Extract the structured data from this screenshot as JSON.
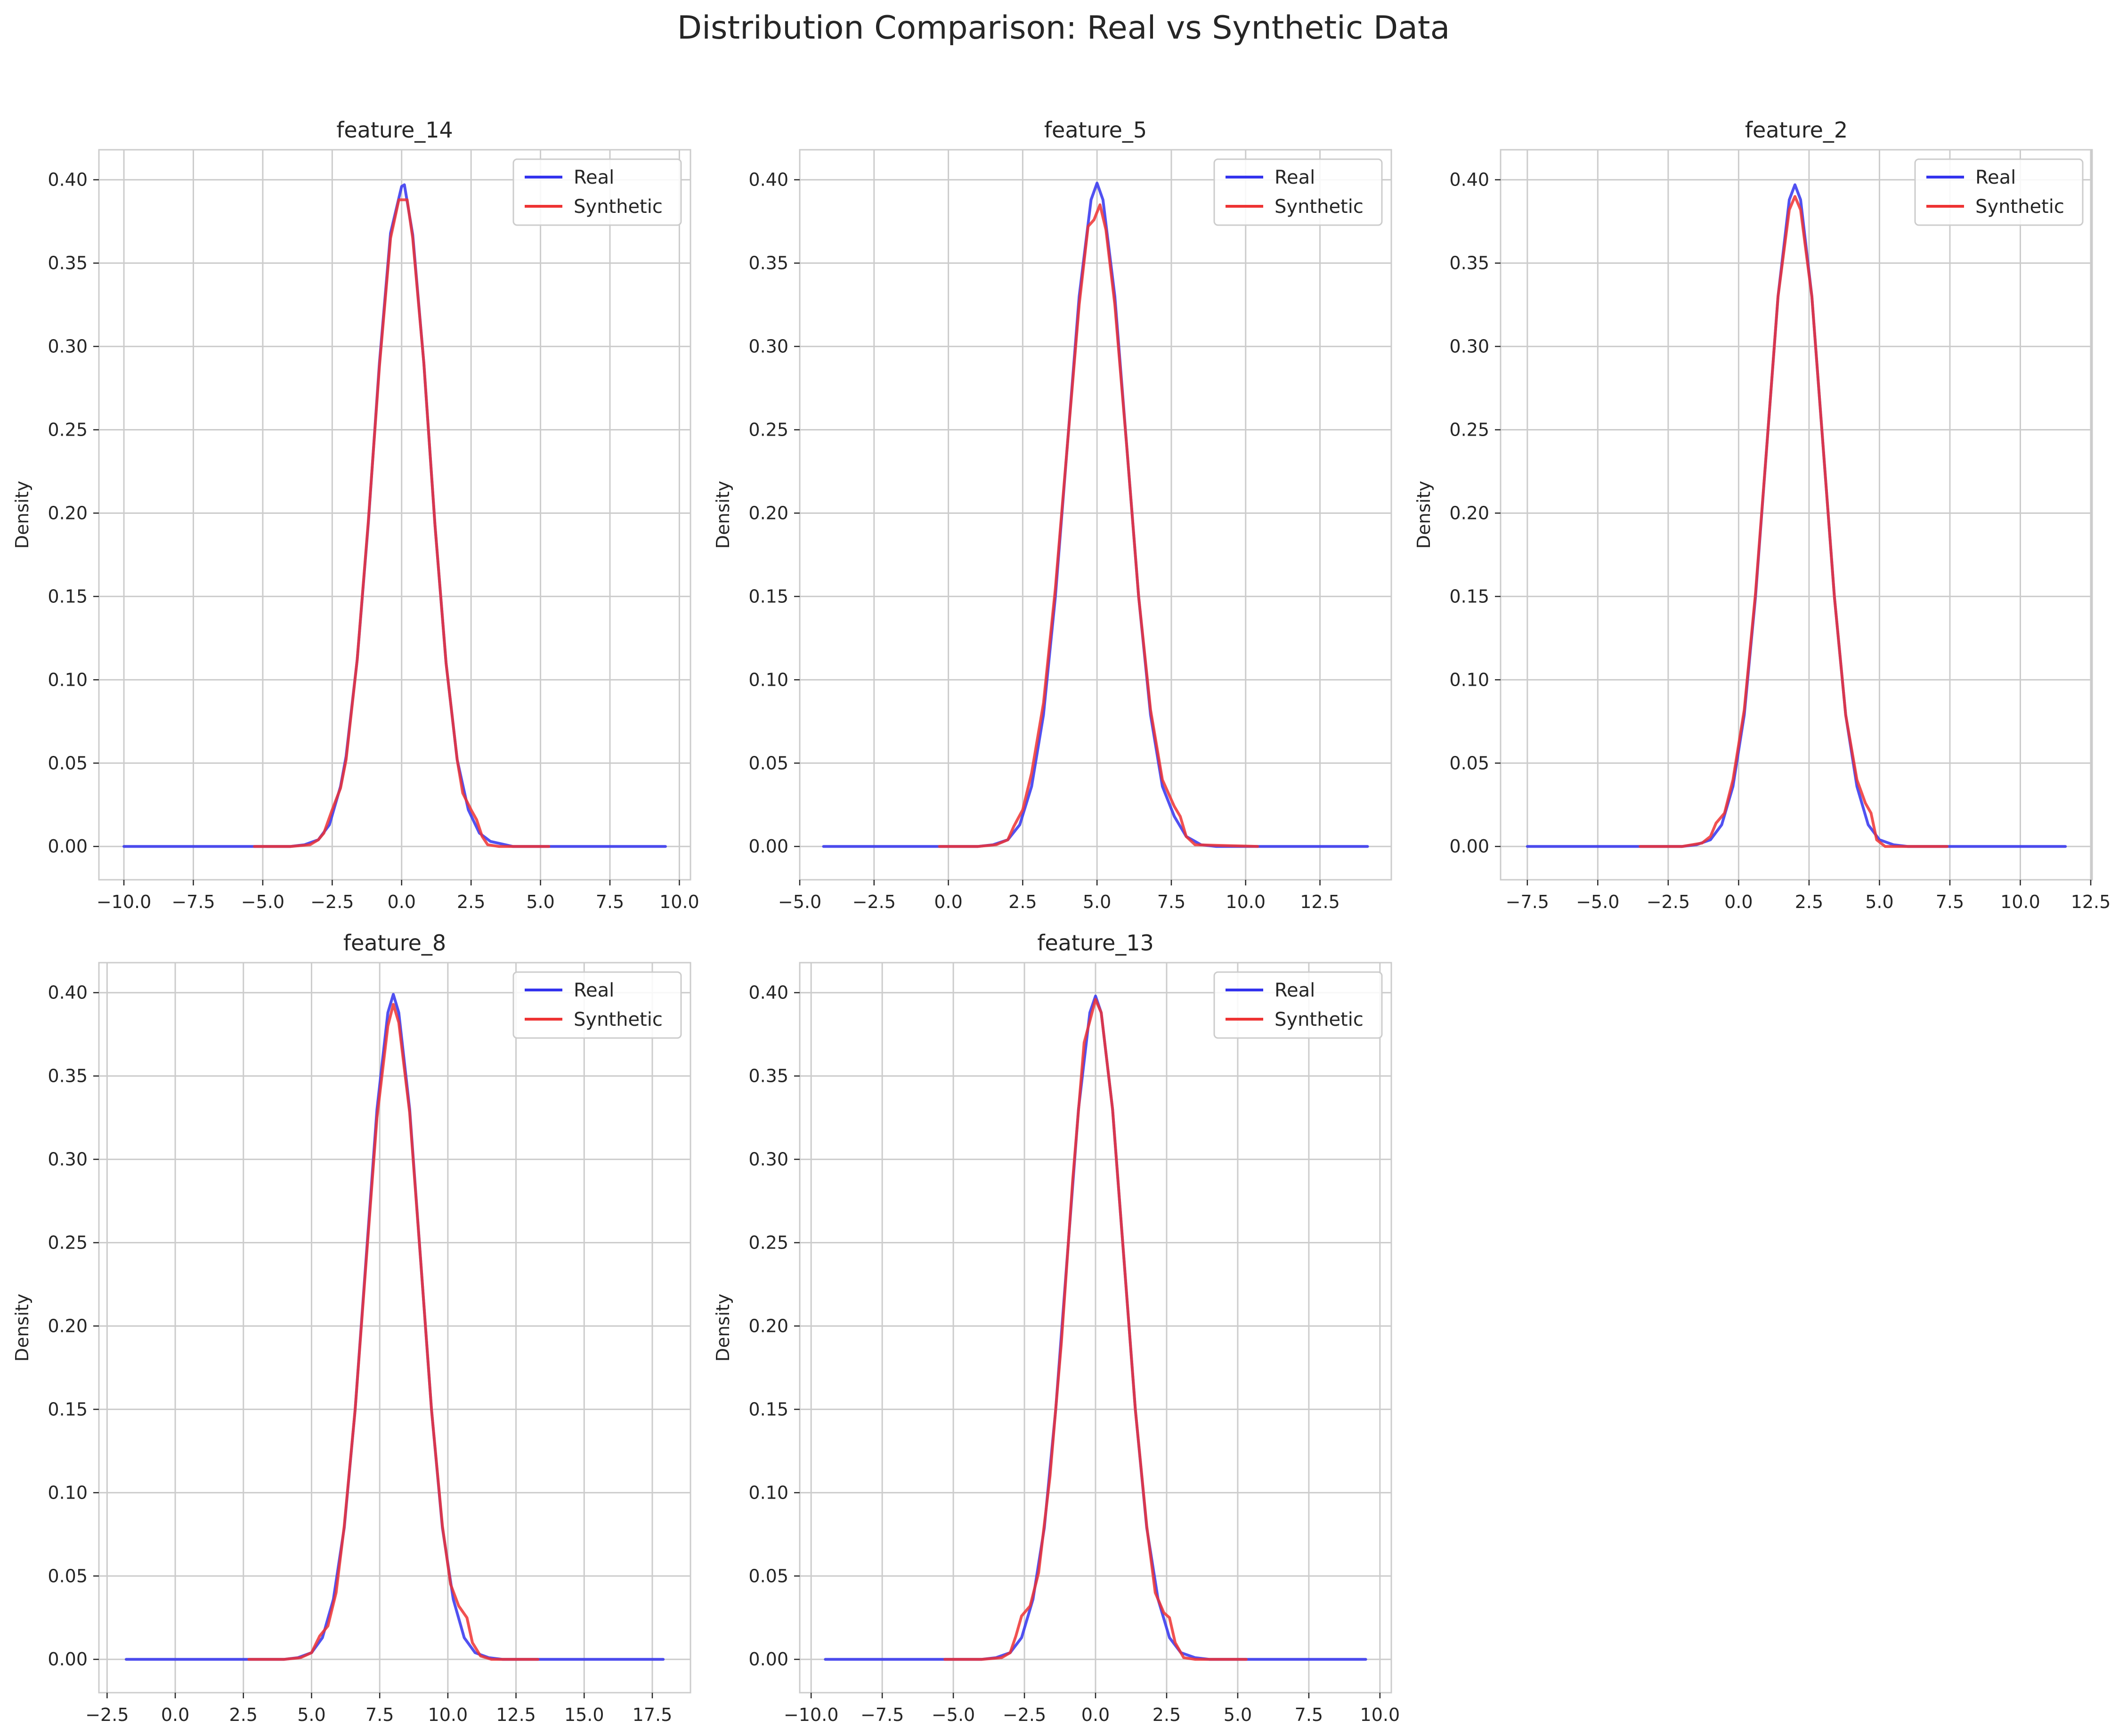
{
  "figure": {
    "title": "Distribution Comparison: Real vs Synthetic Data"
  },
  "colors": {
    "real": "#3333ee",
    "synthetic": "#ee3333",
    "grid": "#cccccc",
    "axes_edge": "#cccccc",
    "text": "#262626"
  },
  "chart_data": [
    {
      "type": "line",
      "title": "feature_14",
      "xlabel": "",
      "ylabel": "Density",
      "xlim": [
        -10.9,
        10.4
      ],
      "ylim": [
        -0.02,
        0.418
      ],
      "xticks": [
        -10.0,
        -7.5,
        -5.0,
        -2.5,
        0.0,
        2.5,
        5.0,
        7.5,
        10.0
      ],
      "xtick_labels": [
        "−10.0",
        "−7.5",
        "−5.0",
        "−2.5",
        "0.0",
        "2.5",
        "5.0",
        "7.5",
        "10.0"
      ],
      "yticks": [
        0.0,
        0.05,
        0.1,
        0.15,
        0.2,
        0.25,
        0.3,
        0.35,
        0.4
      ],
      "ytick_labels": [
        "0.00",
        "0.05",
        "0.10",
        "0.15",
        "0.20",
        "0.25",
        "0.30",
        "0.35",
        "0.40"
      ],
      "grid": true,
      "legend": {
        "position": "top-right",
        "entries": [
          "Real",
          "Synthetic"
        ]
      },
      "series": [
        {
          "name": "Real",
          "x": [
            -10.0,
            -5.0,
            -4.0,
            -3.5,
            -3.0,
            -2.6,
            -2.2,
            -2.0,
            -1.6,
            -1.2,
            -0.8,
            -0.4,
            0.0,
            0.1,
            0.4,
            0.8,
            1.2,
            1.6,
            2.0,
            2.4,
            2.8,
            3.2,
            4.0,
            5.0,
            9.5
          ],
          "y": [
            0.0,
            0.0,
            0.0,
            0.001,
            0.004,
            0.013,
            0.036,
            0.054,
            0.112,
            0.194,
            0.29,
            0.368,
            0.396,
            0.397,
            0.367,
            0.29,
            0.193,
            0.11,
            0.052,
            0.022,
            0.008,
            0.003,
            0.0,
            0.0,
            0.0
          ]
        },
        {
          "name": "Synthetic",
          "x": [
            -5.3,
            -4.0,
            -3.3,
            -3.0,
            -2.8,
            -2.5,
            -2.2,
            -2.0,
            -1.6,
            -1.2,
            -0.8,
            -0.4,
            -0.1,
            0.0,
            0.2,
            0.4,
            0.8,
            1.2,
            1.6,
            2.0,
            2.2,
            2.5,
            2.7,
            2.9,
            3.1,
            3.5,
            5.3
          ],
          "y": [
            0.0,
            0.0,
            0.001,
            0.004,
            0.008,
            0.022,
            0.035,
            0.052,
            0.112,
            0.195,
            0.288,
            0.365,
            0.388,
            0.388,
            0.388,
            0.365,
            0.29,
            0.193,
            0.11,
            0.052,
            0.032,
            0.022,
            0.016,
            0.006,
            0.001,
            0.0,
            0.0
          ]
        }
      ]
    },
    {
      "type": "line",
      "title": "feature_5",
      "xlabel": "",
      "ylabel": "Density",
      "xlim": [
        -5.0,
        14.9
      ],
      "ylim": [
        -0.02,
        0.418
      ],
      "xticks": [
        -5.0,
        -2.5,
        0.0,
        2.5,
        5.0,
        7.5,
        10.0,
        12.5
      ],
      "xtick_labels": [
        "−5.0",
        "−2.5",
        "0.0",
        "2.5",
        "5.0",
        "7.5",
        "10.0",
        "12.5"
      ],
      "yticks": [
        0.0,
        0.05,
        0.1,
        0.15,
        0.2,
        0.25,
        0.3,
        0.35,
        0.4
      ],
      "ytick_labels": [
        "0.00",
        "0.05",
        "0.10",
        "0.15",
        "0.20",
        "0.25",
        "0.30",
        "0.35",
        "0.40"
      ],
      "grid": true,
      "legend": {
        "position": "top-right",
        "entries": [
          "Real",
          "Synthetic"
        ]
      },
      "series": [
        {
          "name": "Real",
          "x": [
            -4.2,
            0.0,
            1.0,
            1.5,
            2.0,
            2.4,
            2.8,
            3.2,
            3.6,
            4.0,
            4.4,
            4.8,
            5.0,
            5.2,
            5.6,
            6.0,
            6.4,
            6.8,
            7.2,
            7.6,
            8.0,
            8.5,
            9.0,
            10.0,
            14.1
          ],
          "y": [
            0.0,
            0.0,
            0.0,
            0.001,
            0.004,
            0.013,
            0.036,
            0.079,
            0.15,
            0.24,
            0.33,
            0.388,
            0.398,
            0.388,
            0.33,
            0.24,
            0.15,
            0.079,
            0.036,
            0.018,
            0.006,
            0.001,
            0.0,
            0.0,
            0.0
          ]
        },
        {
          "name": "Synthetic",
          "x": [
            -0.3,
            1.0,
            1.6,
            2.0,
            2.2,
            2.5,
            2.8,
            3.2,
            3.6,
            4.0,
            4.4,
            4.7,
            4.9,
            5.1,
            5.3,
            5.6,
            6.0,
            6.4,
            6.8,
            7.2,
            7.6,
            7.8,
            8.0,
            8.3,
            10.4
          ],
          "y": [
            0.0,
            0.0,
            0.001,
            0.004,
            0.012,
            0.022,
            0.044,
            0.086,
            0.155,
            0.24,
            0.325,
            0.372,
            0.376,
            0.385,
            0.37,
            0.325,
            0.24,
            0.15,
            0.082,
            0.04,
            0.024,
            0.018,
            0.006,
            0.001,
            0.0
          ]
        }
      ]
    },
    {
      "type": "line",
      "title": "feature_2",
      "xlabel": "",
      "ylabel": "Density",
      "xlim": [
        -8.45,
        12.55
      ],
      "ylim": [
        -0.02,
        0.418
      ],
      "xticks": [
        -7.5,
        -5.0,
        -2.5,
        0.0,
        2.5,
        5.0,
        7.5,
        10.0,
        12.5
      ],
      "xtick_labels": [
        "−7.5",
        "−5.0",
        "−2.5",
        "0.0",
        "2.5",
        "5.0",
        "7.5",
        "10.0",
        "12.5"
      ],
      "yticks": [
        0.0,
        0.05,
        0.1,
        0.15,
        0.2,
        0.25,
        0.3,
        0.35,
        0.4
      ],
      "ytick_labels": [
        "0.00",
        "0.05",
        "0.10",
        "0.15",
        "0.20",
        "0.25",
        "0.30",
        "0.35",
        "0.40"
      ],
      "grid": true,
      "legend": {
        "position": "top-right",
        "entries": [
          "Real",
          "Synthetic"
        ]
      },
      "series": [
        {
          "name": "Real",
          "x": [
            -7.5,
            -3.0,
            -2.0,
            -1.5,
            -1.0,
            -0.6,
            -0.2,
            0.2,
            0.6,
            1.0,
            1.4,
            1.8,
            2.0,
            2.2,
            2.6,
            3.0,
            3.4,
            3.8,
            4.2,
            4.6,
            5.0,
            5.5,
            6.0,
            7.0,
            11.6
          ],
          "y": [
            0.0,
            0.0,
            0.0,
            0.001,
            0.004,
            0.013,
            0.036,
            0.079,
            0.15,
            0.24,
            0.33,
            0.388,
            0.397,
            0.388,
            0.33,
            0.24,
            0.15,
            0.079,
            0.036,
            0.013,
            0.004,
            0.001,
            0.0,
            0.0,
            0.0
          ]
        },
        {
          "name": "Synthetic",
          "x": [
            -3.5,
            -2.0,
            -1.3,
            -1.0,
            -0.8,
            -0.5,
            -0.2,
            0.2,
            0.6,
            1.0,
            1.4,
            1.8,
            2.0,
            2.2,
            2.6,
            3.0,
            3.4,
            3.8,
            4.2,
            4.5,
            4.7,
            4.9,
            5.2,
            7.4
          ],
          "y": [
            0.0,
            0.0,
            0.002,
            0.006,
            0.014,
            0.02,
            0.04,
            0.082,
            0.152,
            0.24,
            0.33,
            0.382,
            0.39,
            0.382,
            0.33,
            0.24,
            0.15,
            0.079,
            0.04,
            0.026,
            0.02,
            0.004,
            0.0,
            0.0
          ]
        }
      ]
    },
    {
      "type": "line",
      "title": "feature_8",
      "xlabel": "",
      "ylabel": "Density",
      "xlim": [
        -2.8,
        18.9
      ],
      "ylim": [
        -0.02,
        0.418
      ],
      "xticks": [
        -2.5,
        0.0,
        2.5,
        5.0,
        7.5,
        10.0,
        12.5,
        15.0,
        17.5
      ],
      "xtick_labels": [
        "−2.5",
        "0.0",
        "2.5",
        "5.0",
        "7.5",
        "10.0",
        "12.5",
        "15.0",
        "17.5"
      ],
      "yticks": [
        0.0,
        0.05,
        0.1,
        0.15,
        0.2,
        0.25,
        0.3,
        0.35,
        0.4
      ],
      "ytick_labels": [
        "0.00",
        "0.05",
        "0.10",
        "0.15",
        "0.20",
        "0.25",
        "0.30",
        "0.35",
        "0.40"
      ],
      "grid": true,
      "legend": {
        "position": "top-right",
        "entries": [
          "Real",
          "Synthetic"
        ]
      },
      "series": [
        {
          "name": "Real",
          "x": [
            -1.8,
            3.0,
            4.0,
            4.5,
            5.0,
            5.4,
            5.8,
            6.2,
            6.6,
            7.0,
            7.4,
            7.8,
            8.0,
            8.2,
            8.6,
            9.0,
            9.4,
            9.8,
            10.2,
            10.6,
            11.0,
            11.5,
            12.0,
            13.0,
            17.9
          ],
          "y": [
            0.0,
            0.0,
            0.0,
            0.001,
            0.004,
            0.013,
            0.036,
            0.079,
            0.15,
            0.24,
            0.33,
            0.388,
            0.399,
            0.388,
            0.33,
            0.24,
            0.15,
            0.079,
            0.036,
            0.013,
            0.004,
            0.001,
            0.0,
            0.0,
            0.0
          ]
        },
        {
          "name": "Synthetic",
          "x": [
            2.7,
            4.0,
            4.6,
            5.0,
            5.3,
            5.6,
            5.9,
            6.2,
            6.6,
            7.0,
            7.4,
            7.8,
            8.0,
            8.2,
            8.6,
            9.0,
            9.4,
            9.8,
            10.1,
            10.4,
            10.7,
            10.9,
            11.2,
            11.6,
            13.3
          ],
          "y": [
            0.0,
            0.0,
            0.001,
            0.004,
            0.014,
            0.02,
            0.04,
            0.08,
            0.15,
            0.238,
            0.325,
            0.38,
            0.393,
            0.382,
            0.328,
            0.24,
            0.15,
            0.08,
            0.045,
            0.032,
            0.025,
            0.01,
            0.002,
            0.0,
            0.0
          ]
        }
      ]
    },
    {
      "type": "line",
      "title": "feature_13",
      "xlabel": "",
      "ylabel": "Density",
      "xlim": [
        -10.4,
        10.4
      ],
      "ylim": [
        -0.02,
        0.418
      ],
      "xticks": [
        -10.0,
        -7.5,
        -5.0,
        -2.5,
        0.0,
        2.5,
        5.0,
        7.5,
        10.0
      ],
      "xtick_labels": [
        "−10.0",
        "−7.5",
        "−5.0",
        "−2.5",
        "0.0",
        "2.5",
        "5.0",
        "7.5",
        "10.0"
      ],
      "yticks": [
        0.0,
        0.05,
        0.1,
        0.15,
        0.2,
        0.25,
        0.3,
        0.35,
        0.4
      ],
      "ytick_labels": [
        "0.00",
        "0.05",
        "0.10",
        "0.15",
        "0.20",
        "0.25",
        "0.30",
        "0.35",
        "0.40"
      ],
      "grid": true,
      "legend": {
        "position": "top-right",
        "entries": [
          "Real",
          "Synthetic"
        ]
      },
      "series": [
        {
          "name": "Real",
          "x": [
            -9.5,
            -5.0,
            -4.0,
            -3.5,
            -3.0,
            -2.6,
            -2.2,
            -1.8,
            -1.4,
            -1.0,
            -0.6,
            -0.2,
            0.0,
            0.2,
            0.6,
            1.0,
            1.4,
            1.8,
            2.2,
            2.6,
            3.0,
            3.5,
            4.0,
            5.0,
            9.5
          ],
          "y": [
            0.0,
            0.0,
            0.0,
            0.001,
            0.004,
            0.013,
            0.036,
            0.079,
            0.15,
            0.24,
            0.33,
            0.388,
            0.398,
            0.388,
            0.33,
            0.24,
            0.15,
            0.079,
            0.036,
            0.013,
            0.004,
            0.001,
            0.0,
            0.0,
            0.0
          ]
        },
        {
          "name": "Synthetic",
          "x": [
            -5.3,
            -4.0,
            -3.3,
            -3.0,
            -2.8,
            -2.6,
            -2.3,
            -2.0,
            -1.6,
            -1.2,
            -0.8,
            -0.4,
            0.0,
            0.2,
            0.6,
            1.0,
            1.4,
            1.8,
            2.1,
            2.4,
            2.6,
            2.8,
            3.1,
            3.5,
            5.3
          ],
          "y": [
            0.0,
            0.0,
            0.001,
            0.004,
            0.014,
            0.026,
            0.032,
            0.052,
            0.11,
            0.19,
            0.288,
            0.37,
            0.396,
            0.388,
            0.33,
            0.24,
            0.15,
            0.08,
            0.04,
            0.028,
            0.025,
            0.01,
            0.001,
            0.0,
            0.0
          ]
        }
      ]
    }
  ]
}
